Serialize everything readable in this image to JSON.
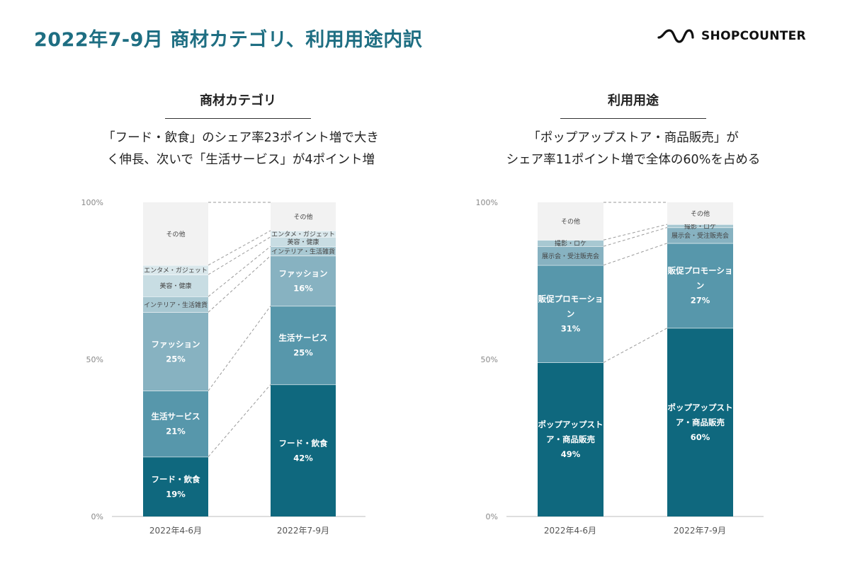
{
  "page": {
    "title": "2022年7-9月 商材カテゴリ、利用用途内訳",
    "brand": "SHOPCOUNTER"
  },
  "colors": {
    "title": "#1e6e82",
    "dark": "#0f687e",
    "mid": "#5797ab",
    "light": "#87b2c1",
    "pale": "#a8c8d2",
    "paler": "#c8dde3",
    "palest": "#dae8ec",
    "other": "#f2f2f2"
  },
  "panels": [
    {
      "title": "商材カテゴリ",
      "subtitle": [
        "「フード・飲食」のシェア率23ポイント増で大き",
        "く伸長、次いで「生活サービス」が4ポイント増"
      ]
    },
    {
      "title": "利用用途",
      "subtitle": [
        "「ポップアップストア・商品販売」が",
        "シェア率11ポイント増で全体の60%を占める"
      ]
    }
  ],
  "chart_data": [
    {
      "type": "bar",
      "stacked": true,
      "title": "商材カテゴリ",
      "categories": [
        "2022年4-6月",
        "2022年7-9月"
      ],
      "yticks": [
        "0%",
        "50%",
        "100%"
      ],
      "ylim": [
        0,
        100
      ],
      "series": [
        {
          "name": "フード・飲食",
          "values": [
            19,
            42
          ],
          "labels": [
            "19%",
            "42%"
          ],
          "color": "dark",
          "inside": true
        },
        {
          "name": "生活サービス",
          "values": [
            21,
            25
          ],
          "labels": [
            "21%",
            "25%"
          ],
          "color": "mid",
          "inside": true
        },
        {
          "name": "ファッション",
          "values": [
            25,
            16
          ],
          "labels": [
            "25%",
            "16%"
          ],
          "color": "light",
          "inside": true
        },
        {
          "name": "インテリア・生活雑貨",
          "values": [
            5,
            3
          ],
          "color": "pale",
          "inside": false
        },
        {
          "name": "美容・健康",
          "values": [
            7,
            3
          ],
          "color": "paler",
          "inside": false
        },
        {
          "name": "エンタメ・ガジェット",
          "values": [
            3,
            2
          ],
          "color": "palest",
          "inside": false
        },
        {
          "name": "その他",
          "values": [
            20,
            9
          ],
          "color": "other",
          "inside": false
        }
      ]
    },
    {
      "type": "bar",
      "stacked": true,
      "title": "利用用途",
      "categories": [
        "2022年4-6月",
        "2022年7-9月"
      ],
      "yticks": [
        "0%",
        "50%",
        "100%"
      ],
      "ylim": [
        0,
        100
      ],
      "series": [
        {
          "name": "ポップアップストア・商品販売",
          "lines": [
            "ポップアップスト",
            "ア・商品販売"
          ],
          "values": [
            49,
            60
          ],
          "labels": [
            "49%",
            "60%"
          ],
          "color": "dark",
          "inside": true
        },
        {
          "name": "販促プロモーション",
          "lines": [
            "販促プロモーショ",
            "ン"
          ],
          "values": [
            31,
            27
          ],
          "labels": [
            "31%",
            "27%"
          ],
          "color": "mid",
          "inside": true
        },
        {
          "name": "展示会・受注販売会",
          "values": [
            6,
            5
          ],
          "color": "light",
          "inside": false
        },
        {
          "name": "撮影・ロケ",
          "values": [
            2,
            1
          ],
          "color": "pale",
          "inside": false
        },
        {
          "name": "その他",
          "values": [
            12,
            7
          ],
          "color": "other",
          "inside": false
        }
      ]
    }
  ]
}
